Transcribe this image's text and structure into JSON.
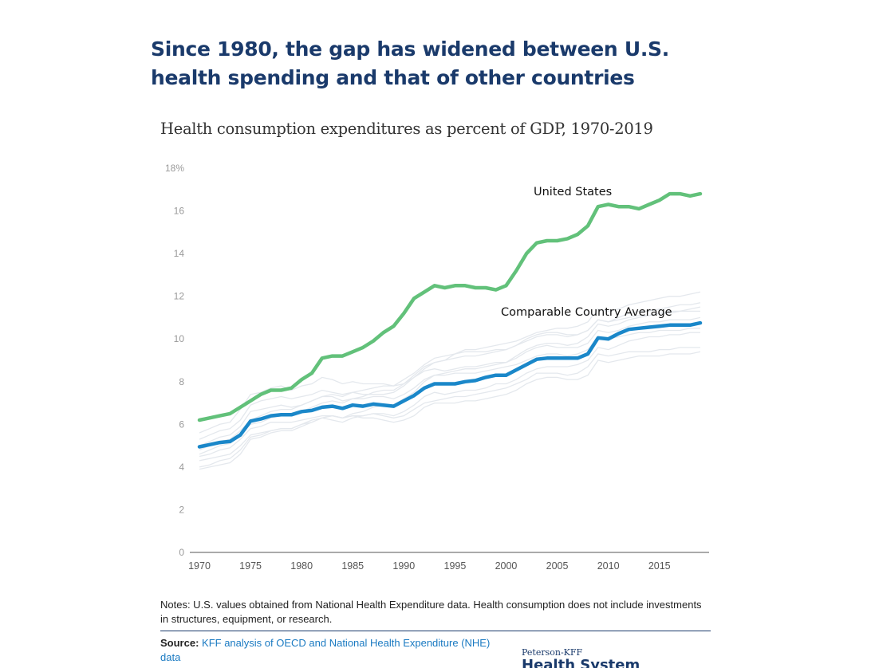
{
  "headline": "Since 1980, the gap has widened between U.S. health spending and that of other countries",
  "chart_data": {
    "type": "line",
    "title": "Health consumption expenditures as percent of GDP, 1970-2019",
    "xlabel": "",
    "ylabel": "",
    "xlim": [
      1970,
      2019
    ],
    "ylim": [
      0,
      18
    ],
    "x_ticks": [
      "1970",
      "1975",
      "1980",
      "1985",
      "1990",
      "1995",
      "2000",
      "2005",
      "2010",
      "2015"
    ],
    "y_ticks": [
      "0",
      "2",
      "4",
      "6",
      "8",
      "10",
      "12",
      "14",
      "16",
      "18%"
    ],
    "grid": false,
    "legend": "direct labels",
    "x": [
      1970,
      1971,
      1972,
      1973,
      1974,
      1975,
      1976,
      1977,
      1978,
      1979,
      1980,
      1981,
      1982,
      1983,
      1984,
      1985,
      1986,
      1987,
      1988,
      1989,
      1990,
      1991,
      1992,
      1993,
      1994,
      1995,
      1996,
      1997,
      1998,
      1999,
      2000,
      2001,
      2002,
      2003,
      2004,
      2005,
      2006,
      2007,
      2008,
      2009,
      2010,
      2011,
      2012,
      2013,
      2014,
      2015,
      2016,
      2017,
      2018,
      2019
    ],
    "series": [
      {
        "name": "United States",
        "color": "#62c17a",
        "values": [
          6.2,
          6.3,
          6.4,
          6.5,
          6.8,
          7.1,
          7.4,
          7.6,
          7.6,
          7.7,
          8.1,
          8.4,
          9.1,
          9.2,
          9.2,
          9.4,
          9.6,
          9.9,
          10.3,
          10.6,
          11.2,
          11.9,
          12.2,
          12.5,
          12.4,
          12.5,
          12.5,
          12.4,
          12.4,
          12.3,
          12.5,
          13.2,
          14.0,
          14.5,
          14.6,
          14.6,
          14.7,
          14.9,
          15.3,
          16.2,
          16.3,
          16.2,
          16.2,
          16.1,
          16.3,
          16.5,
          16.8,
          16.8,
          16.7,
          16.8
        ]
      },
      {
        "name": "Comparable Country Average",
        "color": "#1a87c9",
        "values": [
          4.95,
          5.05,
          5.15,
          5.2,
          5.5,
          6.15,
          6.25,
          6.4,
          6.45,
          6.45,
          6.6,
          6.65,
          6.8,
          6.85,
          6.75,
          6.9,
          6.85,
          6.95,
          6.9,
          6.85,
          7.1,
          7.35,
          7.7,
          7.9,
          7.9,
          7.9,
          8.0,
          8.05,
          8.2,
          8.3,
          8.3,
          8.55,
          8.8,
          9.05,
          9.1,
          9.1,
          9.1,
          9.1,
          9.3,
          10.05,
          10.0,
          10.25,
          10.45,
          10.5,
          10.55,
          10.6,
          10.65,
          10.65,
          10.65,
          10.75
        ]
      }
    ],
    "background_countries": [
      {
        "values": [
          3.9,
          4.0,
          4.1,
          4.2,
          4.6,
          5.3,
          5.4,
          5.6,
          5.7,
          5.7,
          5.9,
          6.1,
          6.3,
          6.2,
          6.1,
          6.3,
          6.4,
          6.5,
          6.5,
          6.4,
          6.6,
          6.9,
          7.3,
          7.5,
          7.4,
          7.5,
          7.6,
          7.6,
          7.7,
          7.9,
          7.9,
          8.1,
          8.4,
          8.6,
          8.7,
          8.7,
          8.7,
          8.8,
          9.0,
          9.6,
          9.5,
          9.7,
          9.9,
          10.0,
          10.1,
          10.1,
          10.2,
          10.2,
          10.3,
          10.3
        ]
      },
      {
        "values": [
          5.3,
          5.5,
          5.7,
          5.8,
          6.2,
          6.9,
          7.1,
          7.2,
          7.3,
          7.2,
          7.3,
          7.4,
          7.6,
          7.5,
          7.4,
          7.5,
          7.4,
          7.4,
          7.4,
          7.5,
          7.8,
          8.2,
          8.6,
          8.9,
          9.0,
          9.1,
          9.2,
          9.2,
          9.3,
          9.4,
          9.5,
          9.7,
          10.0,
          10.2,
          10.3,
          10.3,
          10.2,
          10.2,
          10.4,
          10.9,
          10.8,
          11.0,
          11.2,
          11.3,
          11.3,
          11.4,
          11.5,
          11.6,
          11.6,
          11.7
        ]
      },
      {
        "values": [
          4.6,
          4.8,
          5.0,
          5.1,
          5.5,
          6.0,
          6.1,
          6.3,
          6.4,
          6.4,
          6.6,
          6.8,
          7.0,
          7.1,
          7.0,
          7.2,
          7.3,
          7.5,
          7.6,
          7.6,
          7.9,
          8.3,
          8.7,
          8.9,
          9.0,
          9.3,
          9.5,
          9.5,
          9.6,
          9.7,
          9.8,
          9.9,
          10.1,
          10.3,
          10.4,
          10.5,
          10.5,
          10.6,
          10.8,
          11.4,
          11.3,
          11.4,
          11.6,
          11.7,
          11.8,
          11.9,
          12.0,
          12.0,
          12.1,
          12.2
        ]
      },
      {
        "values": [
          4.3,
          4.4,
          4.5,
          4.6,
          5.0,
          5.5,
          5.6,
          5.7,
          5.8,
          5.8,
          6.0,
          6.2,
          6.3,
          6.4,
          6.3,
          6.4,
          6.4,
          6.5,
          6.4,
          6.3,
          6.4,
          6.7,
          7.0,
          7.1,
          7.2,
          7.3,
          7.3,
          7.4,
          7.5,
          7.6,
          7.7,
          7.9,
          8.1,
          8.4,
          8.4,
          8.4,
          8.3,
          8.4,
          8.7,
          9.3,
          9.2,
          9.3,
          9.4,
          9.4,
          9.4,
          9.5,
          9.5,
          9.6,
          9.6,
          9.6
        ]
      },
      {
        "values": [
          5.6,
          5.8,
          6.0,
          6.1,
          6.7,
          7.4,
          7.5,
          7.7,
          7.8,
          7.6,
          7.8,
          7.9,
          8.2,
          8.1,
          7.9,
          8.0,
          7.9,
          7.9,
          7.9,
          7.8,
          7.9,
          8.2,
          8.5,
          8.6,
          8.5,
          8.6,
          8.7,
          8.7,
          8.8,
          8.9,
          8.9,
          9.1,
          9.4,
          9.6,
          9.7,
          9.6,
          9.6,
          9.6,
          9.8,
          10.4,
          10.3,
          10.4,
          10.6,
          10.7,
          10.8,
          10.8,
          10.9,
          10.9,
          10.9,
          11.0
        ]
      },
      {
        "values": [
          4.5,
          4.6,
          4.8,
          4.9,
          5.3,
          5.8,
          5.9,
          6.1,
          6.1,
          6.1,
          6.2,
          6.3,
          6.4,
          6.4,
          6.3,
          6.4,
          6.3,
          6.3,
          6.2,
          6.1,
          6.2,
          6.4,
          6.8,
          7.0,
          7.0,
          7.0,
          7.1,
          7.1,
          7.2,
          7.3,
          7.4,
          7.6,
          7.9,
          8.1,
          8.2,
          8.2,
          8.1,
          8.1,
          8.3,
          9.0,
          8.9,
          9.0,
          9.1,
          9.2,
          9.2,
          9.2,
          9.3,
          9.3,
          9.3,
          9.4
        ]
      },
      {
        "values": [
          4.0,
          4.1,
          4.3,
          4.4,
          4.8,
          5.4,
          5.5,
          5.7,
          5.8,
          5.8,
          6.0,
          6.1,
          6.3,
          6.4,
          6.3,
          6.5,
          6.6,
          6.8,
          6.9,
          6.9,
          7.2,
          7.5,
          8.0,
          8.3,
          8.4,
          8.5,
          8.6,
          8.6,
          8.7,
          8.8,
          8.9,
          9.2,
          9.5,
          9.7,
          9.8,
          9.8,
          9.7,
          9.8,
          10.1,
          10.7,
          10.6,
          10.7,
          10.9,
          11.0,
          11.1,
          11.2,
          11.3,
          11.3,
          11.4,
          11.5
        ]
      },
      {
        "values": [
          5.0,
          5.2,
          5.4,
          5.5,
          5.9,
          6.6,
          6.7,
          6.8,
          6.9,
          6.8,
          6.9,
          7.1,
          7.3,
          7.3,
          7.1,
          7.2,
          7.2,
          7.3,
          7.3,
          7.2,
          7.4,
          7.7,
          8.1,
          8.3,
          8.3,
          8.4,
          8.4,
          8.4,
          8.5,
          8.6,
          8.7,
          8.8,
          9.0,
          9.2,
          9.3,
          9.3,
          9.2,
          9.3,
          9.5,
          10.1,
          10.0,
          10.1,
          10.2,
          10.3,
          10.3,
          10.4,
          10.4,
          10.4,
          10.5,
          10.5
        ]
      },
      {
        "values": [
          4.8,
          5.0,
          5.2,
          5.3,
          5.7,
          6.2,
          6.4,
          6.6,
          6.7,
          6.7,
          6.9,
          7.1,
          7.3,
          7.4,
          7.3,
          7.5,
          7.6,
          7.7,
          7.8,
          7.8,
          8.1,
          8.4,
          8.8,
          9.1,
          9.2,
          9.3,
          9.4,
          9.4,
          9.4,
          9.5,
          9.5,
          9.7,
          9.9,
          10.1,
          10.2,
          10.2,
          10.1,
          10.2,
          10.4,
          10.9,
          10.8,
          10.9,
          11.0,
          11.1,
          11.1,
          11.2,
          11.2,
          11.3,
          11.3,
          11.3
        ]
      }
    ]
  },
  "notes": "Notes: U.S. values obtained from National Health Expenditure data. Health consumption does not include investments in structures, equipment, or research.",
  "source_label": "Source:",
  "source_link": "KFF analysis of OECD and National Health Expenditure (NHE) data",
  "brand_line1": "Peterson-KFF",
  "brand_line2": "Health System Tracker"
}
